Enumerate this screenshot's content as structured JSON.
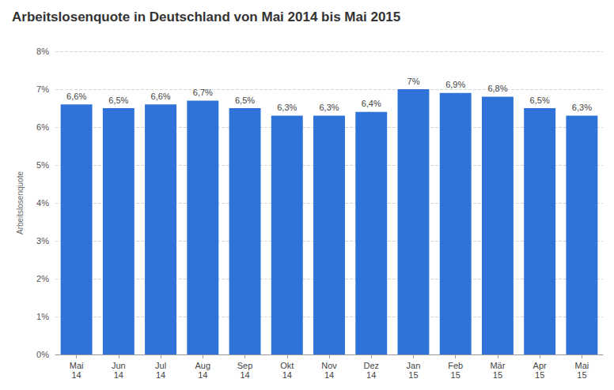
{
  "chart_data": {
    "type": "bar",
    "title": "Arbeitslosenquote in Deutschland von Mai 2014 bis Mai 2015",
    "y_label": "Arbeitslosenquote",
    "categories": [
      "Mai 14",
      "Jun 14",
      "Jul 14",
      "Aug 14",
      "Sep 14",
      "Okt 14",
      "Nov 14",
      "Dez 14",
      "Jan 15",
      "Feb 15",
      "Mär 15",
      "Apr 15",
      "Mai 15"
    ],
    "values": [
      6.6,
      6.5,
      6.6,
      6.7,
      6.5,
      6.3,
      6.3,
      6.4,
      7,
      6.9,
      6.8,
      6.5,
      6.3
    ],
    "value_labels": [
      "6,6%",
      "6,5%",
      "6,6%",
      "6,7%",
      "6,5%",
      "6,3%",
      "6,3%",
      "6,4%",
      "7%",
      "6,9%",
      "6,8%",
      "6,5%",
      "6,3%"
    ],
    "color": "#2f73d8",
    "ylim": [
      0,
      8
    ],
    "yticks": [
      {
        "value": 0,
        "label": "0%"
      },
      {
        "value": 1,
        "label": "1%"
      },
      {
        "value": 2,
        "label": "2%"
      },
      {
        "value": 3,
        "label": "3%"
      },
      {
        "value": 4,
        "label": "4%"
      },
      {
        "value": 5,
        "label": "5%"
      },
      {
        "value": 6,
        "label": "6%"
      },
      {
        "value": 7,
        "label": "7%"
      },
      {
        "value": 8,
        "label": "8%"
      }
    ],
    "grid": true,
    "data_labels": true
  }
}
